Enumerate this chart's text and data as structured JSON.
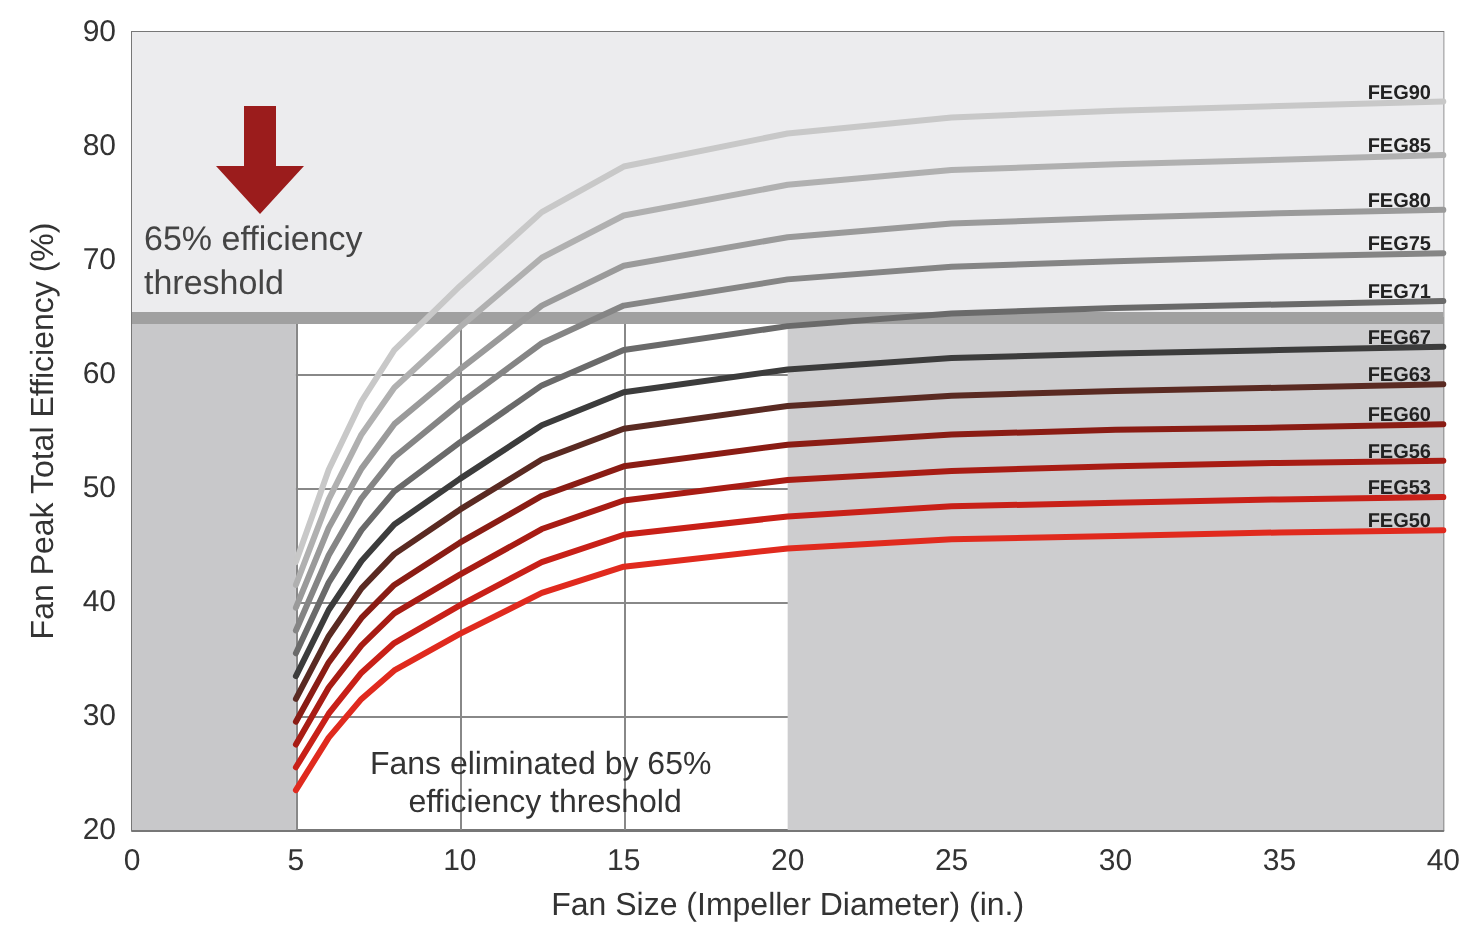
{
  "chart_data": {
    "type": "line",
    "xlabel": "Fan Size (Impeller Diameter) (in.)",
    "ylabel": "Fan Peak Total Efficiency (%)",
    "x": [
      5,
      6,
      7,
      8,
      10,
      12.5,
      15,
      20,
      25,
      30,
      35,
      40
    ],
    "xlim": [
      0,
      40
    ],
    "xticks": [
      0,
      5,
      10,
      15,
      20,
      25,
      30,
      35,
      40
    ],
    "ylim": [
      20,
      90
    ],
    "yticks": [
      20,
      30,
      40,
      50,
      60,
      70,
      80,
      90
    ],
    "grid": true,
    "legend": false,
    "marker": "none",
    "line_style": "solid",
    "series": [
      {
        "name": "FEG90",
        "color": "#c8c8c8",
        "values": [
          43.5,
          51.6,
          57.6,
          62.1,
          67.7,
          74.2,
          78.2,
          81.1,
          82.5,
          83.1,
          83.5,
          83.9
        ]
      },
      {
        "name": "FEG85",
        "color": "#b0b0b0",
        "values": [
          41.5,
          49.0,
          54.7,
          58.8,
          64.1,
          70.2,
          73.9,
          76.6,
          77.9,
          78.4,
          78.8,
          79.2
        ]
      },
      {
        "name": "FEG80",
        "color": "#9a9a9a",
        "values": [
          39.5,
          46.5,
          51.7,
          55.6,
          60.4,
          66.0,
          69.5,
          72.0,
          73.2,
          73.7,
          74.1,
          74.4
        ]
      },
      {
        "name": "FEG75",
        "color": "#858585",
        "values": [
          37.5,
          44.1,
          49.1,
          52.7,
          57.4,
          62.7,
          66.0,
          68.3,
          69.4,
          69.9,
          70.3,
          70.6
        ]
      },
      {
        "name": "FEG71",
        "color": "#6a6a6a",
        "values": [
          35.5,
          41.7,
          46.3,
          49.7,
          54.0,
          59.0,
          62.1,
          64.2,
          65.3,
          65.8,
          66.1,
          66.4
        ]
      },
      {
        "name": "FEG67",
        "color": "#3c3c3c",
        "values": [
          33.5,
          39.3,
          43.6,
          46.8,
          50.8,
          55.5,
          58.4,
          60.4,
          61.4,
          61.8,
          62.1,
          62.4
        ]
      },
      {
        "name": "FEG63",
        "color": "#5a2a22",
        "values": [
          31.5,
          37.0,
          41.2,
          44.2,
          48.1,
          52.5,
          55.2,
          57.2,
          58.1,
          58.5,
          58.8,
          59.1
        ]
      },
      {
        "name": "FEG60",
        "color": "#8a1c14",
        "values": [
          29.5,
          34.7,
          38.6,
          41.5,
          45.2,
          49.3,
          51.9,
          53.8,
          54.7,
          55.1,
          55.3,
          55.6
        ]
      },
      {
        "name": "FEG56",
        "color": "#a81c14",
        "values": [
          27.5,
          32.5,
          36.2,
          39.0,
          42.4,
          46.4,
          48.9,
          50.7,
          51.5,
          51.9,
          52.2,
          52.4
        ]
      },
      {
        "name": "FEG53",
        "color": "#c82018",
        "values": [
          25.5,
          30.2,
          33.8,
          36.4,
          39.7,
          43.5,
          45.9,
          47.5,
          48.4,
          48.7,
          49.0,
          49.2
        ]
      },
      {
        "name": "FEG50",
        "color": "#e02a1e",
        "values": [
          23.5,
          28.1,
          31.5,
          34.0,
          37.2,
          40.8,
          43.1,
          44.7,
          45.5,
          45.8,
          46.1,
          46.3
        ]
      }
    ],
    "ref_lines": [
      {
        "axis": "y",
        "value": 65,
        "label": "65% efficiency threshold",
        "color": "#a0a0a0",
        "line_style": "solid"
      }
    ],
    "bands": [
      {
        "axis": "x",
        "from": 0,
        "to": 5,
        "color": "#c8c8ca"
      },
      {
        "axis": "x",
        "from": 20,
        "to": 40,
        "color": "#cdcdcf"
      },
      {
        "axis": "y",
        "from": 65,
        "to": 90,
        "color": "#ececee"
      }
    ],
    "annotations": [
      "Fans eliminated by 65% efficiency threshold"
    ]
  }
}
